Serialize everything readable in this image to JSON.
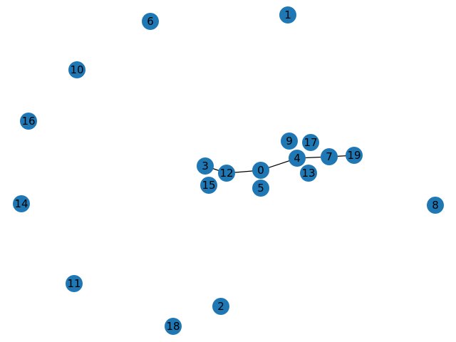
{
  "graph": {
    "node_color": "#1f77b4",
    "edge_color": "#000000",
    "label_color": "#000000",
    "nodes": [
      "0",
      "1",
      "2",
      "3",
      "4",
      "5",
      "6",
      "7",
      "8",
      "9",
      "10",
      "11",
      "12",
      "13",
      "14",
      "15",
      "16",
      "17",
      "18",
      "19"
    ],
    "edges": [
      [
        "3",
        "12"
      ],
      [
        "12",
        "0"
      ],
      [
        "0",
        "4"
      ],
      [
        "4",
        "7"
      ],
      [
        "7",
        "19"
      ]
    ]
  }
}
